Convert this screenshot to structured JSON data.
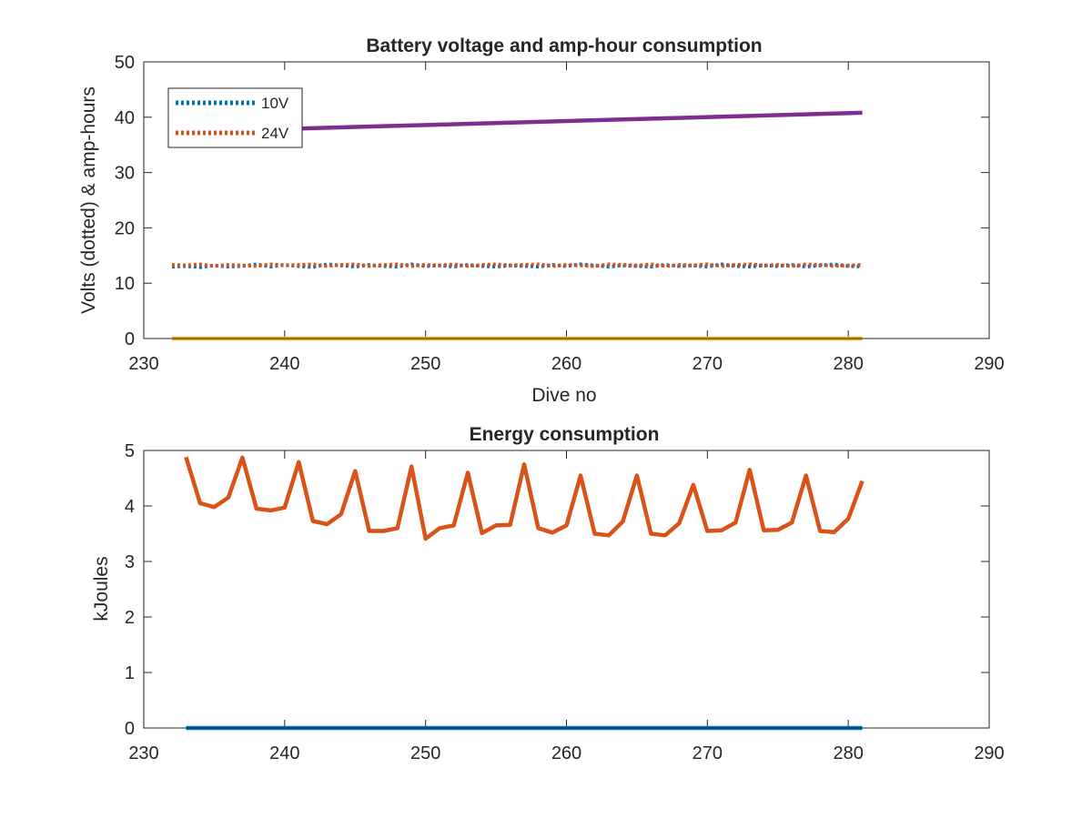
{
  "chart_data": [
    {
      "type": "line",
      "title": "Battery voltage and amp-hour consumption",
      "xlabel": "Dive no",
      "ylabel": "Volts (dotted) & amp-hours",
      "xlim": [
        230,
        290
      ],
      "ylim": [
        0,
        50
      ],
      "xticks": [
        230,
        240,
        250,
        260,
        270,
        280,
        290
      ],
      "yticks": [
        0,
        10,
        20,
        30,
        40,
        50
      ],
      "legend_position": "top-left",
      "grid": false,
      "series": [
        {
          "name": "10V",
          "style": "dotted",
          "color": "#0072BD",
          "x": [
            232,
            233,
            234,
            235,
            236,
            237,
            238,
            239,
            240,
            241,
            242,
            243,
            244,
            245,
            246,
            247,
            248,
            249,
            250,
            251,
            252,
            253,
            254,
            255,
            256,
            257,
            258,
            259,
            260,
            261,
            262,
            263,
            264,
            265,
            266,
            267,
            268,
            269,
            270,
            271,
            272,
            273,
            274,
            275,
            276,
            277,
            278,
            279,
            280,
            281
          ],
          "values": [
            13.0,
            13.1,
            12.9,
            13.2,
            13.0,
            13.1,
            13.4,
            13.0,
            13.3,
            13.1,
            12.9,
            13.4,
            13.2,
            13.0,
            13.3,
            13.1,
            13.0,
            13.4,
            13.1,
            13.2,
            13.0,
            13.3,
            13.1,
            13.0,
            13.2,
            13.1,
            13.0,
            13.3,
            13.1,
            13.4,
            13.2,
            13.0,
            13.2,
            13.1,
            13.0,
            13.3,
            13.1,
            13.2,
            13.0,
            13.4,
            13.1,
            13.0,
            13.2,
            13.1,
            13.3,
            13.0,
            13.2,
            13.4,
            13.1,
            13.0
          ]
        },
        {
          "name": "24V",
          "style": "dotted",
          "color": "#D95319",
          "x": [
            232,
            233,
            234,
            235,
            236,
            237,
            238,
            239,
            240,
            241,
            242,
            243,
            244,
            245,
            246,
            247,
            248,
            249,
            250,
            251,
            252,
            253,
            254,
            255,
            256,
            257,
            258,
            259,
            260,
            261,
            262,
            263,
            264,
            265,
            266,
            267,
            268,
            269,
            270,
            271,
            272,
            273,
            274,
            275,
            276,
            277,
            278,
            279,
            280,
            281
          ],
          "values": [
            13.3,
            13.2,
            13.4,
            13.1,
            13.3,
            13.2,
            13.1,
            13.4,
            13.2,
            13.3,
            13.4,
            13.1,
            13.3,
            13.4,
            13.1,
            13.3,
            13.4,
            13.1,
            13.3,
            13.2,
            13.4,
            13.1,
            13.3,
            13.4,
            13.2,
            13.3,
            13.4,
            13.1,
            13.3,
            13.2,
            13.1,
            13.4,
            13.3,
            13.2,
            13.4,
            13.1,
            13.3,
            13.2,
            13.4,
            13.1,
            13.3,
            13.4,
            13.2,
            13.3,
            13.1,
            13.4,
            13.3,
            13.1,
            13.2,
            13.3
          ]
        },
        {
          "style": "solid",
          "color": "#7E2F8E",
          "x": [
            232,
            281
          ],
          "values": [
            37.3,
            40.8
          ]
        },
        {
          "style": "solid",
          "color": "#EDB120",
          "x": [
            232,
            281
          ],
          "values": [
            0,
            0
          ]
        }
      ]
    },
    {
      "type": "line",
      "title": "Energy consumption",
      "xlabel": "",
      "ylabel": "kJoules",
      "xlim": [
        230,
        290
      ],
      "ylim": [
        0,
        5
      ],
      "xticks": [
        230,
        240,
        250,
        260,
        270,
        280,
        290
      ],
      "yticks": [
        0,
        1,
        2,
        3,
        4,
        5
      ],
      "grid": false,
      "series": [
        {
          "style": "solid",
          "color": "#0072BD",
          "x": [
            233,
            281
          ],
          "values": [
            0,
            0
          ]
        },
        {
          "style": "solid",
          "color": "#D95319",
          "x": [
            233,
            234,
            235,
            236,
            237,
            238,
            239,
            240,
            241,
            242,
            243,
            244,
            245,
            246,
            247,
            248,
            249,
            250,
            251,
            252,
            253,
            254,
            255,
            256,
            257,
            258,
            259,
            260,
            261,
            262,
            263,
            264,
            265,
            266,
            267,
            268,
            269,
            270,
            271,
            272,
            273,
            274,
            275,
            276,
            277,
            278,
            279,
            280,
            281
          ],
          "values": [
            4.88,
            4.05,
            3.98,
            4.15,
            4.87,
            3.95,
            3.92,
            3.97,
            4.79,
            3.73,
            3.67,
            3.85,
            4.63,
            3.55,
            3.55,
            3.6,
            4.71,
            3.41,
            3.6,
            3.65,
            4.6,
            3.51,
            3.65,
            3.66,
            4.75,
            3.6,
            3.52,
            3.65,
            4.55,
            3.5,
            3.47,
            3.72,
            4.55,
            3.5,
            3.47,
            3.69,
            4.38,
            3.55,
            3.56,
            3.7,
            4.65,
            3.56,
            3.57,
            3.7,
            4.55,
            3.55,
            3.53,
            3.77,
            4.45
          ]
        }
      ]
    }
  ]
}
